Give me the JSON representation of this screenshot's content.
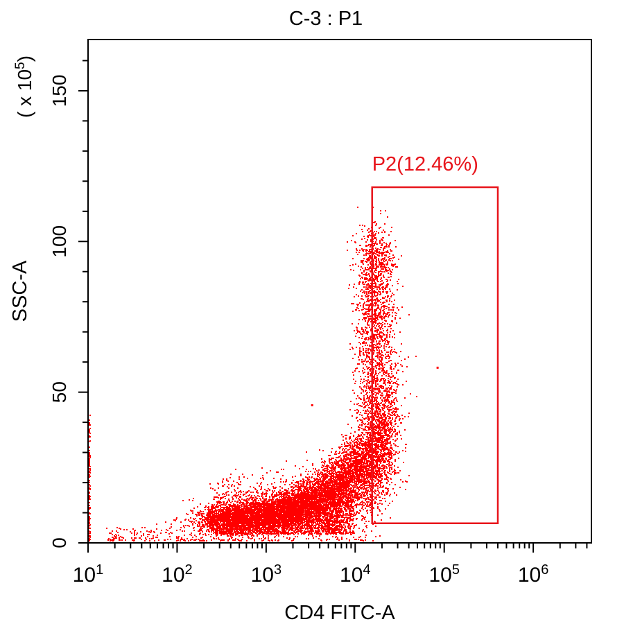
{
  "chart_data": {
    "type": "scatter",
    "title": "C-3 : P1",
    "xlabel": "CD4 FITC-A",
    "ylabel": "SSC-A",
    "y_multiplier_label": "(x 10^5)",
    "x_scale": "log",
    "xlim": [
      10,
      4500000
    ],
    "ylim": [
      0,
      167
    ],
    "x_ticks": [
      {
        "value": 10,
        "base": "10",
        "exp": "1"
      },
      {
        "value": 100,
        "base": "10",
        "exp": "2"
      },
      {
        "value": 1000,
        "base": "10",
        "exp": "3"
      },
      {
        "value": 10000,
        "base": "10",
        "exp": "4"
      },
      {
        "value": 100000,
        "base": "10",
        "exp": "5"
      },
      {
        "value": 1000000,
        "base": "10",
        "exp": "6"
      }
    ],
    "y_ticks": [
      0,
      50,
      100,
      150
    ],
    "y_minor_step": 10,
    "grid": false,
    "point_color": "#ff0000",
    "gate": {
      "name": "P2",
      "label": "P2(12.46%)",
      "color": "#e8141b",
      "x_range": [
        15500,
        400000
      ],
      "y_range": [
        6.5,
        118
      ]
    }
  }
}
